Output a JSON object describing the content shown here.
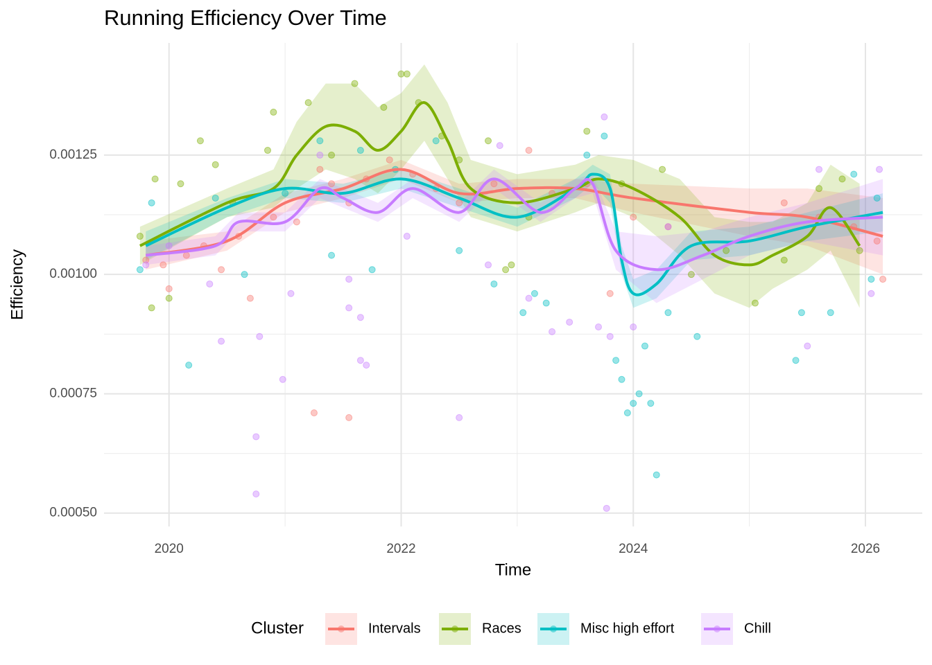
{
  "chart_data": {
    "type": "scatter",
    "title": "Running Efficiency Over Time",
    "x_label": "Time",
    "y_label": "Efficiency",
    "legend_title": "Cluster",
    "legend_position": "bottom",
    "grid": true,
    "xlim": [
      2019.44,
      2026.49
    ],
    "xticks": [
      2020,
      2022,
      2024,
      2026
    ],
    "ylim": [
      0.000472,
      0.001485
    ],
    "yticks": [
      {
        "value": 0.0005,
        "label": "0.00050"
      },
      {
        "value": 0.00075,
        "label": "0.00075"
      },
      {
        "value": 0.001,
        "label": "0.00100"
      },
      {
        "value": 0.00125,
        "label": "0.00125"
      }
    ],
    "series": [
      {
        "name": "Intervals",
        "color": "#F8766D",
        "x": [
          2019.8,
          2019.95,
          2020.0,
          2020.15,
          2020.3,
          2020.45,
          2020.6,
          2020.7,
          2020.9,
          2021.1,
          2021.25,
          2021.3,
          2021.4,
          2021.55,
          2021.55,
          2021.7,
          2021.9,
          2022.1,
          2022.3,
          2022.5,
          2022.8,
          2023.1,
          2023.3,
          2023.6,
          2023.8,
          2024.0,
          2024.3,
          2025.3,
          2025.6,
          2025.9,
          2026.1,
          2026.15
        ],
        "values": [
          0.00103,
          0.00102,
          0.00097,
          0.00104,
          0.00106,
          0.00101,
          0.00108,
          0.00095,
          0.00112,
          0.00111,
          0.00071,
          0.00122,
          0.00119,
          0.00115,
          0.0007,
          0.0012,
          0.00124,
          0.00121,
          0.00118,
          0.00115,
          0.00119,
          0.00126,
          0.00117,
          0.00119,
          0.00096,
          0.00112,
          0.0011,
          0.00115,
          0.00112,
          0.0011,
          0.00107,
          0.00099
        ],
        "smooth": {
          "x": [
            2019.8,
            2020.5,
            2021.0,
            2021.5,
            2022.0,
            2022.5,
            2023.0,
            2023.5,
            2024.0,
            2025.0,
            2025.5,
            2026.15
          ],
          "y": [
            0.00104,
            0.00107,
            0.00115,
            0.00118,
            0.00122,
            0.00117,
            0.00118,
            0.00118,
            0.00116,
            0.00113,
            0.00112,
            0.00108
          ],
          "lower": [
            0.00101,
            0.00105,
            0.00113,
            0.00116,
            0.0012,
            0.00115,
            0.00116,
            0.00116,
            0.00113,
            0.00108,
            0.00106,
            0.001
          ],
          "upper": [
            0.00107,
            0.00109,
            0.00117,
            0.0012,
            0.00124,
            0.00119,
            0.0012,
            0.0012,
            0.00119,
            0.00118,
            0.00118,
            0.00116
          ]
        }
      },
      {
        "name": "Races",
        "color": "#7CAE00",
        "x": [
          2019.75,
          2019.85,
          2019.88,
          2020.0,
          2020.1,
          2020.27,
          2020.4,
          2020.55,
          2020.9,
          2020.85,
          2021.2,
          2021.4,
          2021.6,
          2021.85,
          2022.0,
          2022.05,
          2022.15,
          2022.35,
          2022.5,
          2022.75,
          2022.9,
          2022.95,
          2023.1,
          2023.6,
          2023.9,
          2024.25,
          2024.5,
          2024.8,
          2025.05,
          2025.3,
          2025.6,
          2025.8,
          2025.95
        ],
        "values": [
          0.00108,
          0.00093,
          0.0012,
          0.00095,
          0.00119,
          0.00128,
          0.00123,
          0.00115,
          0.00134,
          0.00126,
          0.00136,
          0.00125,
          0.0014,
          0.00135,
          0.00142,
          0.00142,
          0.00136,
          0.00129,
          0.00124,
          0.00128,
          0.00101,
          0.00102,
          0.00112,
          0.0013,
          0.00119,
          0.00122,
          0.001,
          0.00105,
          0.00094,
          0.00103,
          0.00118,
          0.0012,
          0.00105
        ],
        "smooth": {
          "x": [
            2019.75,
            2020.5,
            2020.9,
            2021.1,
            2021.35,
            2021.6,
            2021.8,
            2022.0,
            2022.2,
            2022.4,
            2022.6,
            2023.0,
            2023.5,
            2023.7,
            2024.0,
            2024.4,
            2024.7,
            2025.0,
            2025.2,
            2025.5,
            2025.7,
            2025.95
          ],
          "y": [
            0.00106,
            0.00115,
            0.00118,
            0.00125,
            0.00131,
            0.0013,
            0.00126,
            0.0013,
            0.00136,
            0.00128,
            0.00118,
            0.00115,
            0.00118,
            0.0012,
            0.00118,
            0.00112,
            0.00104,
            0.00102,
            0.00104,
            0.00108,
            0.00114,
            0.00106
          ],
          "lower": [
            0.00102,
            0.00112,
            0.00114,
            0.00118,
            0.00122,
            0.0012,
            0.00117,
            0.00122,
            0.00128,
            0.0012,
            0.00112,
            0.00109,
            0.00113,
            0.00115,
            0.00112,
            0.00104,
            0.00096,
            0.00093,
            0.00097,
            0.00101,
            0.00105,
            0.00093
          ],
          "upper": [
            0.0011,
            0.00118,
            0.00122,
            0.00132,
            0.0014,
            0.0014,
            0.00135,
            0.00138,
            0.00144,
            0.00136,
            0.00124,
            0.00121,
            0.00123,
            0.00125,
            0.00124,
            0.0012,
            0.00112,
            0.00111,
            0.00111,
            0.00115,
            0.00123,
            0.00119
          ]
        }
      },
      {
        "name": "Misc high effort",
        "color": "#00BFC4",
        "x": [
          2019.75,
          2019.85,
          2020.17,
          2020.4,
          2020.65,
          2021.0,
          2021.3,
          2021.4,
          2021.65,
          2021.75,
          2021.95,
          2022.3,
          2022.5,
          2022.8,
          2023.05,
          2023.15,
          2023.25,
          2023.6,
          2023.75,
          2023.85,
          2023.9,
          2023.95,
          2024.0,
          2024.05,
          2024.1,
          2024.15,
          2024.2,
          2024.3,
          2024.55,
          2025.4,
          2025.45,
          2025.7,
          2025.9,
          2026.05,
          2026.1
        ],
        "values": [
          0.00101,
          0.00115,
          0.00081,
          0.00116,
          0.001,
          0.00117,
          0.00128,
          0.00104,
          0.00126,
          0.00101,
          0.00122,
          0.00128,
          0.00105,
          0.00098,
          0.00092,
          0.00096,
          0.00094,
          0.00125,
          0.00129,
          0.00082,
          0.00078,
          0.00071,
          0.00073,
          0.00075,
          0.00085,
          0.00073,
          0.00058,
          0.00092,
          0.00087,
          0.00082,
          0.00092,
          0.00092,
          0.00121,
          0.00099,
          0.00116
        ],
        "smooth": {
          "x": [
            2019.8,
            2020.5,
            2021.0,
            2021.5,
            2022.0,
            2022.5,
            2023.0,
            2023.5,
            2023.65,
            2023.8,
            2023.9,
            2024.0,
            2024.2,
            2024.5,
            2025.0,
            2025.5,
            2026.15
          ],
          "y": [
            0.00106,
            0.00114,
            0.00118,
            0.00117,
            0.0012,
            0.00116,
            0.00112,
            0.00118,
            0.00121,
            0.00118,
            0.00103,
            0.00096,
            0.00098,
            0.00106,
            0.00107,
            0.0011,
            0.00113
          ],
          "lower": [
            0.00103,
            0.00112,
            0.00116,
            0.00115,
            0.00118,
            0.00114,
            0.0011,
            0.00116,
            0.00119,
            0.00115,
            0.001,
            0.00093,
            0.00095,
            0.00103,
            0.00104,
            0.00107,
            0.00109
          ],
          "upper": [
            0.00109,
            0.00116,
            0.0012,
            0.00119,
            0.00122,
            0.00118,
            0.00114,
            0.0012,
            0.00123,
            0.00121,
            0.00106,
            0.00099,
            0.00101,
            0.00109,
            0.0011,
            0.00113,
            0.00117
          ]
        }
      },
      {
        "name": "Chill",
        "color": "#C77CFF",
        "x": [
          2019.8,
          2020.0,
          2020.35,
          2020.45,
          2020.75,
          2020.75,
          2020.78,
          2020.98,
          2021.05,
          2021.3,
          2021.55,
          2021.55,
          2021.65,
          2021.7,
          2021.65,
          2022.05,
          2022.5,
          2022.75,
          2022.85,
          2023.1,
          2023.3,
          2023.45,
          2023.7,
          2023.75,
          2023.8,
          2023.77,
          2024.0,
          2024.3,
          2025.5,
          2025.6,
          2026.05,
          2026.12
        ],
        "values": [
          0.00102,
          0.00106,
          0.00098,
          0.00086,
          0.00066,
          0.00054,
          0.00087,
          0.00078,
          0.00096,
          0.00125,
          0.00099,
          0.00093,
          0.00082,
          0.00081,
          0.00091,
          0.00108,
          0.0007,
          0.00102,
          0.00127,
          0.00095,
          0.00088,
          0.0009,
          0.00089,
          0.00133,
          0.00087,
          0.00051,
          0.00089,
          0.0011,
          0.00085,
          0.00122,
          0.00096,
          0.00122
        ],
        "smooth": {
          "x": [
            2019.8,
            2020.4,
            2020.6,
            2021.0,
            2021.3,
            2021.5,
            2021.8,
            2022.1,
            2022.5,
            2022.8,
            2023.2,
            2023.5,
            2023.65,
            2023.85,
            2024.2,
            2024.6,
            2025.0,
            2025.5,
            2026.15
          ],
          "y": [
            0.00104,
            0.00106,
            0.00111,
            0.00111,
            0.00118,
            0.00116,
            0.00113,
            0.00118,
            0.00113,
            0.0012,
            0.00113,
            0.00118,
            0.00119,
            0.00105,
            0.00101,
            0.00104,
            0.00108,
            0.00111,
            0.00112
          ],
          "lower": [
            0.00102,
            0.00104,
            0.00109,
            0.00109,
            0.00116,
            0.00114,
            0.00111,
            0.00116,
            0.00111,
            0.00118,
            0.00111,
            0.00116,
            0.00117,
            0.00101,
            0.00094,
            0.00099,
            0.00104,
            0.00107,
            0.00104
          ],
          "upper": [
            0.00106,
            0.00108,
            0.00113,
            0.00113,
            0.0012,
            0.00118,
            0.00115,
            0.0012,
            0.00115,
            0.00122,
            0.00115,
            0.0012,
            0.00121,
            0.00109,
            0.00108,
            0.00109,
            0.00112,
            0.00115,
            0.0012
          ]
        }
      }
    ]
  }
}
